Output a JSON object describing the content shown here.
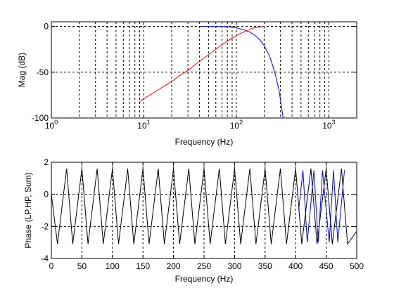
{
  "colors": {
    "lowpass": "#0000ff",
    "highpass": "#ff0000",
    "sum": "#000000"
  },
  "chart_data": [
    {
      "type": "line",
      "xscale": "log",
      "xlim": [
        1,
        2000
      ],
      "ylim": [
        -100,
        5
      ],
      "grid": true,
      "xlabel": "Frequency (Hz)",
      "ylabel": "Mag (dB)",
      "title": "",
      "xticks": [
        {
          "base": "10",
          "exp": "0",
          "value": 1
        },
        {
          "base": "10",
          "exp": "1",
          "value": 10
        },
        {
          "base": "10",
          "exp": "2",
          "value": 100
        },
        {
          "base": "10",
          "exp": "3",
          "value": 1000
        }
      ],
      "yticks": [
        {
          "label": "0",
          "value": 0
        },
        {
          "label": "-50",
          "value": -50
        },
        {
          "label": "-100",
          "value": -100
        }
      ],
      "series": [
        {
          "color": "#0000ff",
          "x": [
            40,
            50,
            60,
            70,
            80,
            90,
            100,
            120,
            140,
            160,
            180,
            200,
            230,
            260,
            290,
            320
          ],
          "y": [
            0,
            0,
            -0.1,
            -0.2,
            -0.5,
            -1,
            -1.7,
            -3.5,
            -6.3,
            -10,
            -15,
            -21,
            -33,
            -50,
            -70,
            -100
          ]
        },
        {
          "color": "#ff0000",
          "x": [
            9,
            10,
            12,
            15,
            20,
            25,
            30,
            40,
            50,
            60,
            70,
            80,
            100,
            120,
            150,
            200
          ],
          "y": [
            -82,
            -79,
            -74,
            -68,
            -60,
            -53,
            -48,
            -38,
            -31,
            -25,
            -20,
            -16,
            -10,
            -6,
            -2,
            0
          ]
        }
      ]
    },
    {
      "type": "line",
      "xlim": [
        0,
        500
      ],
      "ylim": [
        -4,
        2
      ],
      "grid": true,
      "xlabel": "Frequency (Hz)",
      "ylabel": "Phase (LP,HP, Sum)",
      "title": "",
      "xticks": [
        {
          "label": "0",
          "value": 0
        },
        {
          "label": "50",
          "value": 50
        },
        {
          "label": "100",
          "value": 100
        },
        {
          "label": "150",
          "value": 150
        },
        {
          "label": "200",
          "value": 200
        },
        {
          "label": "250",
          "value": 250
        },
        {
          "label": "300",
          "value": 300
        },
        {
          "label": "350",
          "value": 350
        },
        {
          "label": "400",
          "value": 400
        },
        {
          "label": "450",
          "value": 450
        },
        {
          "label": "500",
          "value": 500
        }
      ],
      "yticks": [
        {
          "label": "2",
          "value": 2
        },
        {
          "label": "0",
          "value": 0
        },
        {
          "label": "-2",
          "value": -2
        },
        {
          "label": "-4",
          "value": -4
        }
      ],
      "series": [
        {
          "color": "#000000",
          "x": [
            0,
            10,
            25,
            35,
            50,
            60,
            75,
            85,
            100,
            110,
            125,
            135,
            150,
            160,
            175,
            185,
            200,
            210,
            225,
            235,
            250,
            260,
            275,
            285,
            300,
            310,
            325,
            335,
            350,
            360,
            375,
            385,
            400,
            410,
            425,
            435,
            450,
            460,
            475,
            485,
            500
          ],
          "y": [
            0,
            -3.1,
            1.6,
            -3.1,
            1.6,
            -3.1,
            1.6,
            -3.1,
            1.6,
            -3.1,
            1.6,
            -3.1,
            1.6,
            -3.1,
            1.6,
            -3.1,
            1.6,
            -3.1,
            1.6,
            -3.1,
            1.6,
            -3.1,
            1.6,
            -3.1,
            1.6,
            -3.1,
            1.6,
            -3.1,
            1.6,
            -3.1,
            1.6,
            -3.1,
            1.6,
            -3.1,
            1.6,
            -3.1,
            1.6,
            -3.1,
            1.6,
            -3.1,
            -2.3
          ]
        },
        {
          "color": "#0000ff",
          "x": [
            405,
            412,
            419,
            430,
            437,
            444,
            455,
            462,
            469,
            480
          ],
          "y": [
            -1.0,
            1.5,
            -3.0,
            1.5,
            -3.0,
            1.5,
            -3.0,
            1.5,
            -3.0,
            1.5
          ]
        }
      ]
    }
  ]
}
